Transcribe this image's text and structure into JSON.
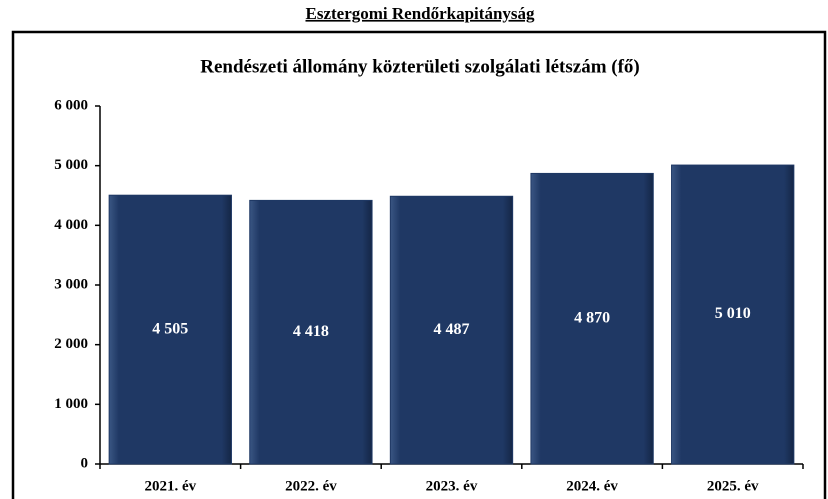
{
  "page_title": "Esztergomi Rendőrkapitányság",
  "chart_data": {
    "type": "bar",
    "title": "Rendészeti állomány közterületi szolgálati létszám (fő)",
    "categories": [
      "2021. év",
      "2022. év",
      "2023. év",
      "2024. év",
      "2025. év"
    ],
    "values": [
      4505,
      4418,
      4487,
      4870,
      5010
    ],
    "value_labels": [
      "4 505",
      "4 418",
      "4 487",
      "4 870",
      "5 010"
    ],
    "color": "#1f3864",
    "ylim": [
      0,
      6000
    ],
    "yticks": [
      {
        "value": 0,
        "label": "0"
      },
      {
        "value": 1000,
        "label": "1 000"
      },
      {
        "value": 2000,
        "label": "2 000"
      },
      {
        "value": 3000,
        "label": "3 000"
      },
      {
        "value": 4000,
        "label": "4 000"
      },
      {
        "value": 5000,
        "label": "5 000"
      },
      {
        "value": 6000,
        "label": "6 000"
      }
    ],
    "grid": false
  }
}
